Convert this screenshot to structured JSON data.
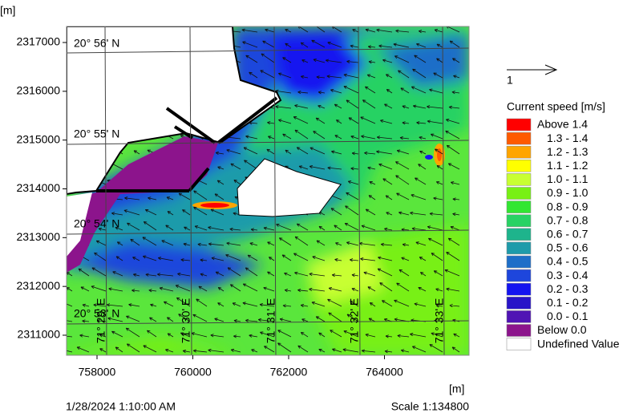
{
  "axes": {
    "x_unit": "[m]",
    "y_unit": "[m]",
    "xlim": [
      757364,
      765766
    ],
    "ylim": [
      2310589,
      2317329
    ],
    "xticks": [
      758000,
      760000,
      762000,
      764000
    ],
    "yticks": [
      2311000,
      2312000,
      2313000,
      2314000,
      2315000,
      2316000,
      2317000
    ]
  },
  "graticule": {
    "latitudes": [
      "20° 56' N",
      "20° 55' N",
      "20° 54' N",
      "20° 53' N"
    ],
    "longitudes": [
      "71° 29' E",
      "71° 30' E",
      "71° 31' E",
      "71° 32' E",
      "71° 33' E"
    ]
  },
  "vector_legend": {
    "label": "1"
  },
  "legend": {
    "title": "Current speed [m/s]",
    "items": [
      {
        "label": "Above 1.4",
        "color": "#ff0000"
      },
      {
        "label": "1.3 - 1.4",
        "color": "#ff5a00"
      },
      {
        "label": "1.2 - 1.3",
        "color": "#ffa500"
      },
      {
        "label": "1.1 - 1.2",
        "color": "#ffff00"
      },
      {
        "label": "1.0 - 1.1",
        "color": "#c8ff32"
      },
      {
        "label": "0.9 - 1.0",
        "color": "#78f014"
      },
      {
        "label": "0.8 - 0.9",
        "color": "#32e632"
      },
      {
        "label": "0.7 - 0.8",
        "color": "#28d264"
      },
      {
        "label": "0.6 - 0.7",
        "color": "#1eb48c"
      },
      {
        "label": "0.5 - 0.6",
        "color": "#1e9baa"
      },
      {
        "label": "0.4 - 0.5",
        "color": "#1e6ec8"
      },
      {
        "label": "0.3 - 0.4",
        "color": "#1e46dc"
      },
      {
        "label": "0.2 - 0.3",
        "color": "#1414f0"
      },
      {
        "label": "0.1 - 0.2",
        "color": "#2814c8"
      },
      {
        "label": "0.0 - 0.1",
        "color": "#5014b4"
      },
      {
        "label": "Below 0.0",
        "color": "#8c148c"
      },
      {
        "label": "Undefined Value",
        "color": "#ffffff"
      }
    ]
  },
  "footer": {
    "timestamp": "1/28/2024 1:10:00 AM",
    "scale": "Scale 1:134800"
  }
}
